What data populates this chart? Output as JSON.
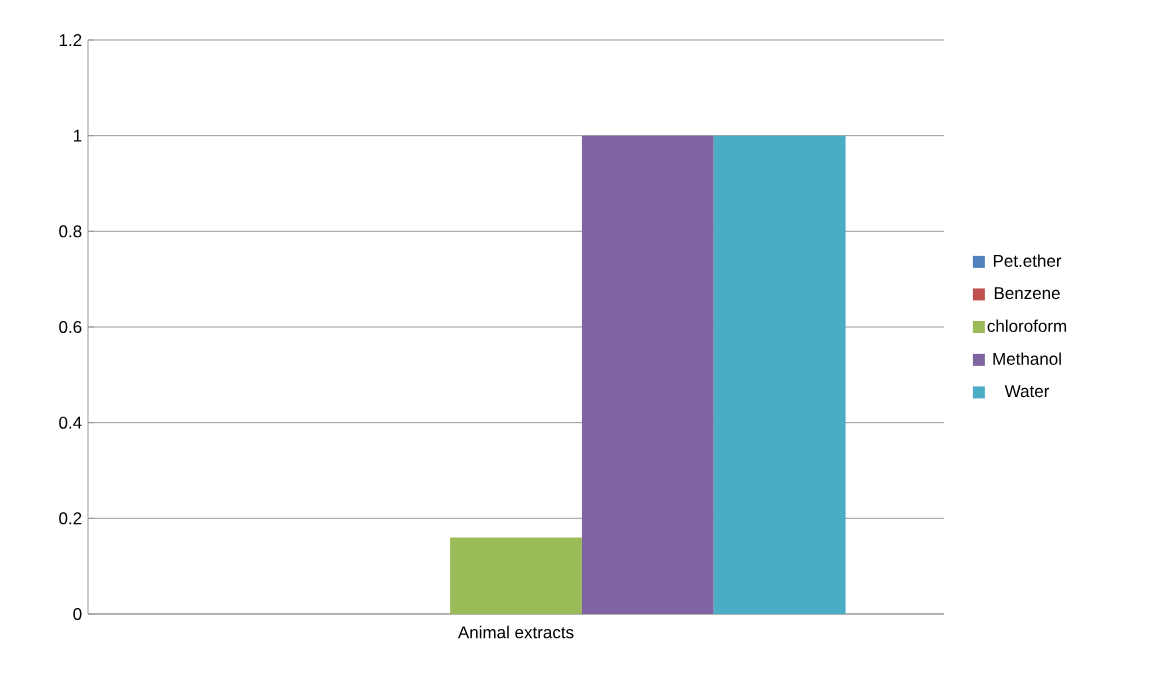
{
  "chart_data": {
    "type": "bar",
    "categories": [
      "Animal extracts"
    ],
    "series": [
      {
        "name": "Pet.ether",
        "color": "#4f81bd",
        "values": [
          0
        ]
      },
      {
        "name": "Benzene",
        "color": "#c0504d",
        "values": [
          0
        ]
      },
      {
        "name": "chloroform",
        "color": "#9bbb59",
        "values": [
          0.16
        ]
      },
      {
        "name": "Methanol",
        "color": "#8064a2",
        "values": [
          1
        ]
      },
      {
        "name": "Water",
        "color": "#4bacc6",
        "values": [
          1
        ]
      }
    ],
    "ylim": [
      0,
      1.2
    ],
    "yticks": [
      0,
      0.2,
      0.4,
      0.6,
      0.8,
      1,
      1.2
    ],
    "grid": "y",
    "legend": "right"
  }
}
